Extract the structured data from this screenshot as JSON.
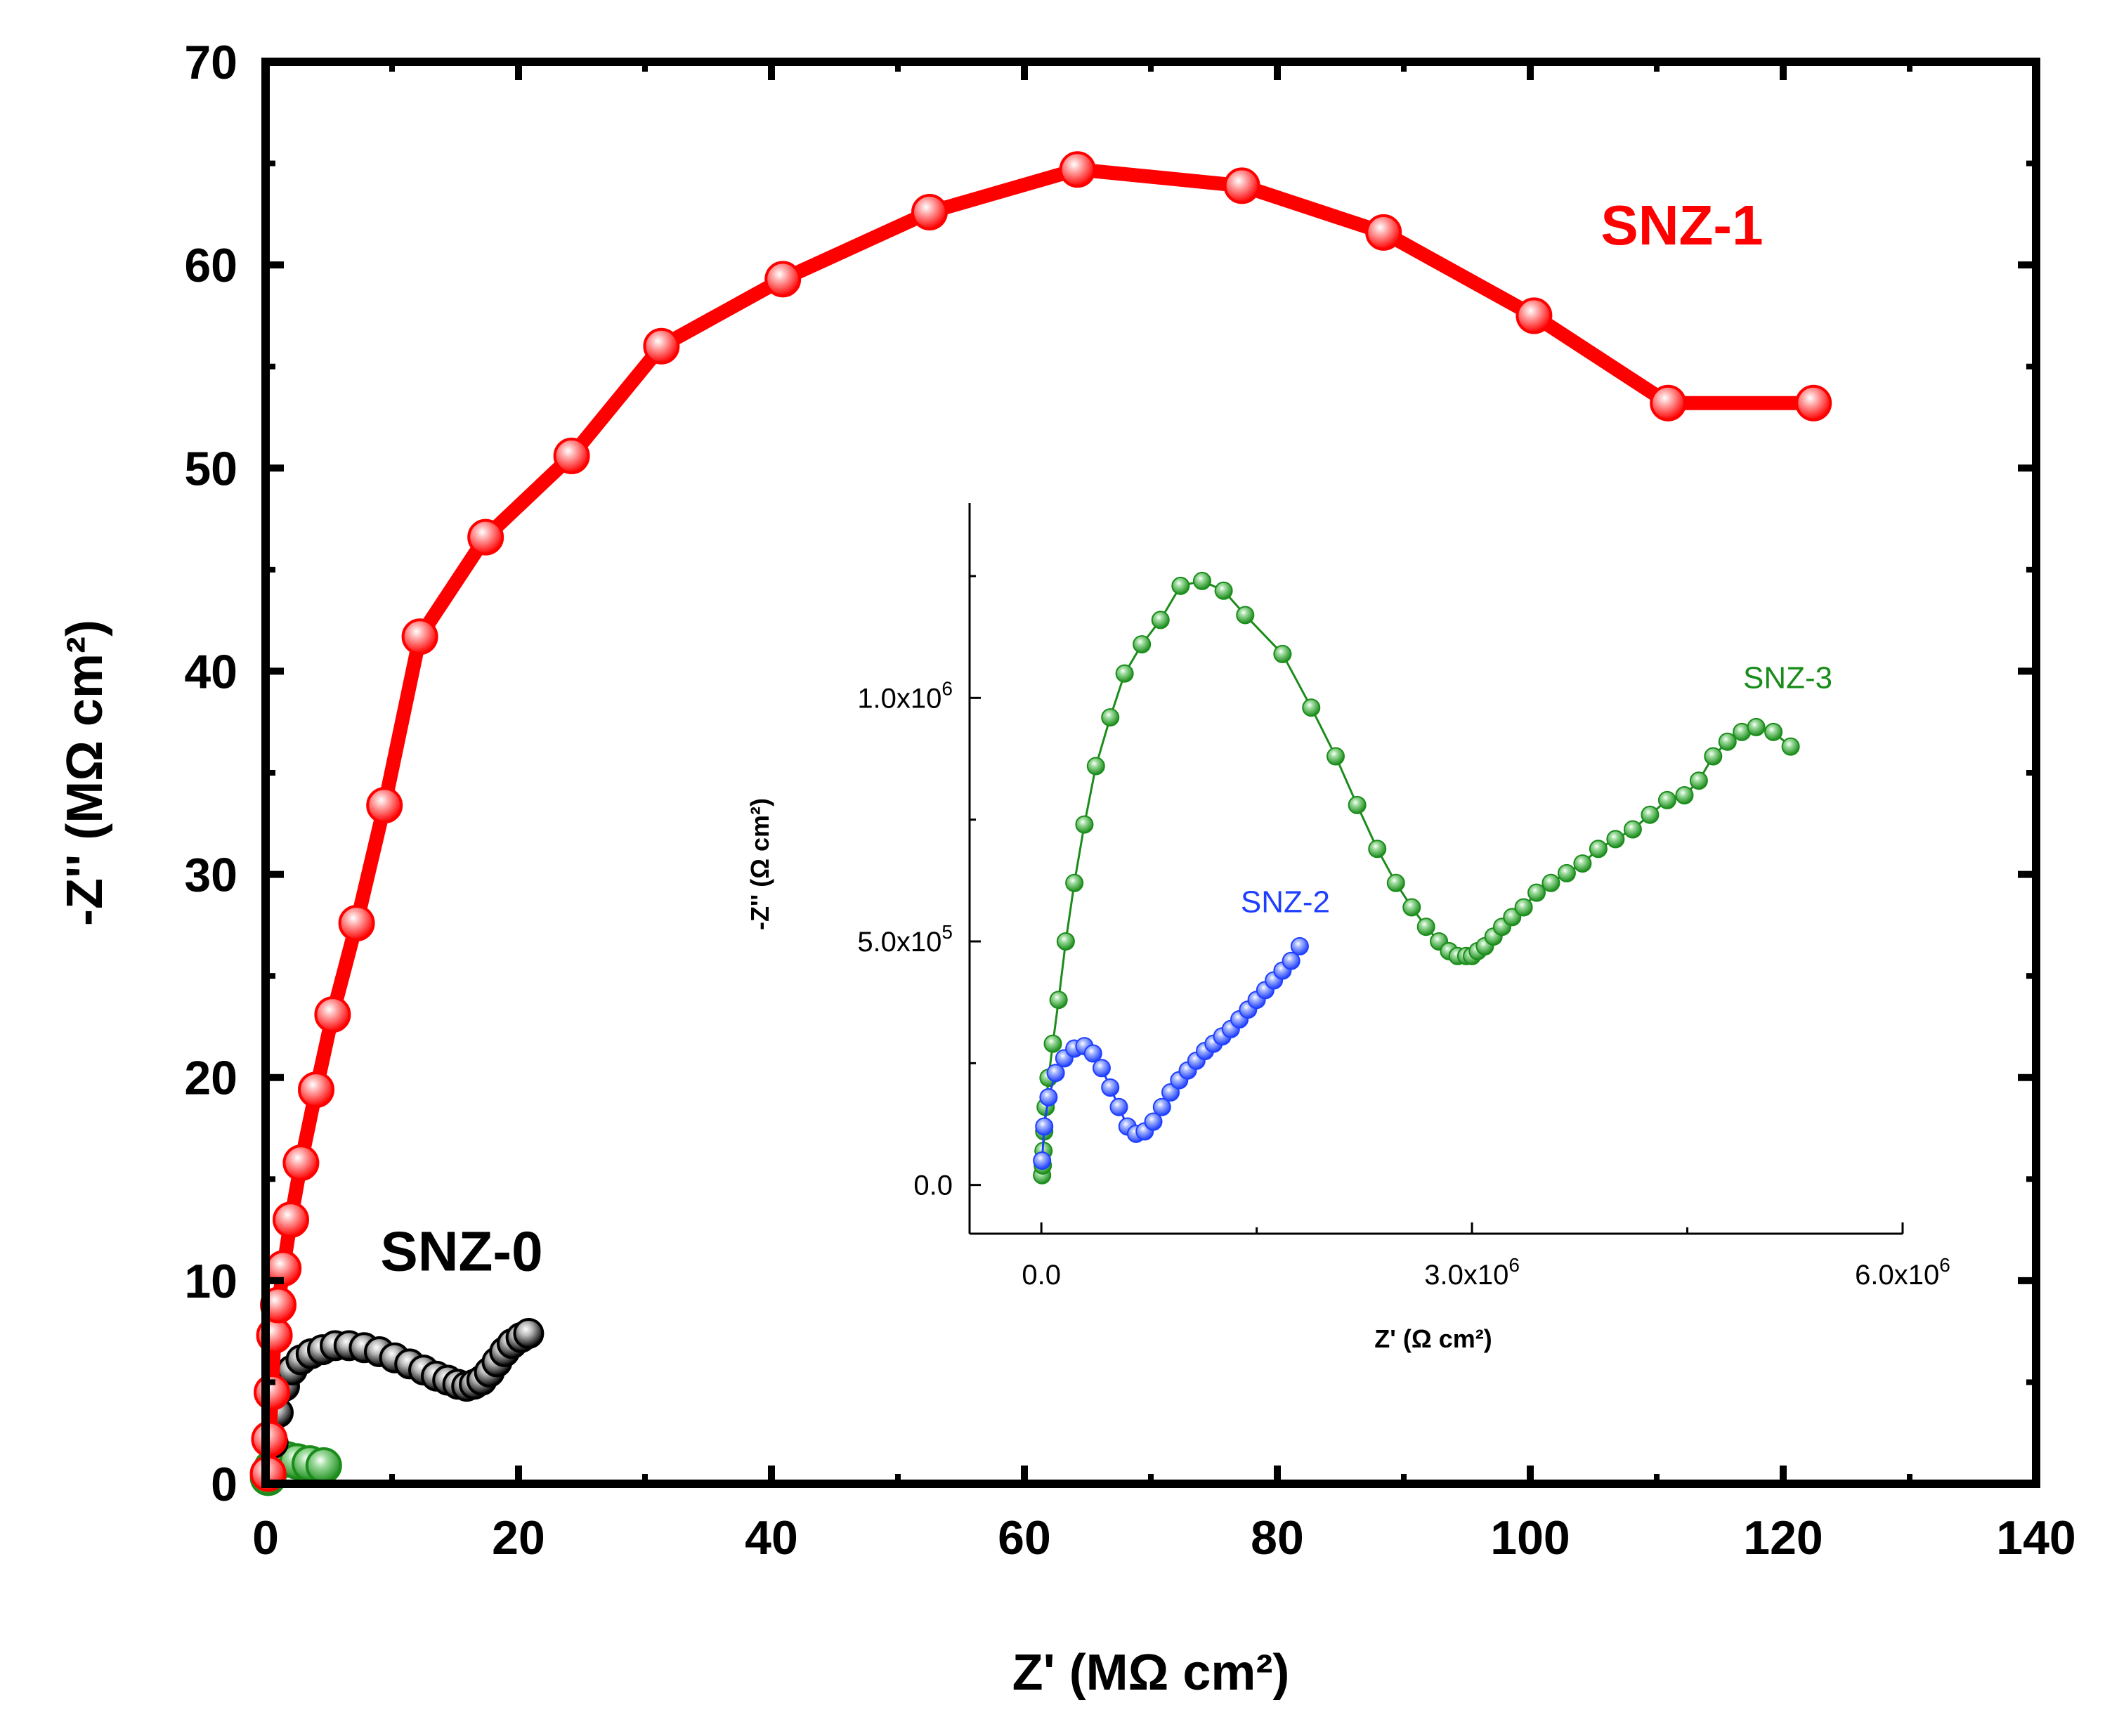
{
  "chart_data": [
    {
      "type": "scatter",
      "title": "",
      "xlabel": "Z' (MΩ cm²)",
      "ylabel": "-Z'' (MΩ cm²)",
      "xlim": [
        0,
        140
      ],
      "ylim": [
        0,
        70
      ],
      "xticks": [
        "0",
        "20",
        "40",
        "60",
        "80",
        "100",
        "120",
        "140"
      ],
      "yticks": [
        "0",
        "10",
        "20",
        "30",
        "40",
        "50",
        "60",
        "70"
      ],
      "grid": false,
      "series": [
        {
          "name": "SNZ-1",
          "label": "SNZ-1",
          "color": "#ff0000",
          "x": [
            0.2,
            0.3,
            0.5,
            0.7,
            1.0,
            1.4,
            2.0,
            2.8,
            4.0,
            5.3,
            7.2,
            9.4,
            12.2,
            17.4,
            24.2,
            31.3,
            40.9,
            52.5,
            64.2,
            77.2,
            88.4,
            100.3,
            110.9,
            122.4
          ],
          "y": [
            0.5,
            2.2,
            4.5,
            7.3,
            8.8,
            10.6,
            13.0,
            15.8,
            19.4,
            23.1,
            27.6,
            33.4,
            41.7,
            46.6,
            50.6,
            56.0,
            59.3,
            62.6,
            64.7,
            63.9,
            61.6,
            57.5,
            53.2,
            53.2
          ]
        },
        {
          "name": "SNZ-0",
          "label": "SNZ-0",
          "color": "#000000",
          "x": [
            0.3,
            0.6,
            1.0,
            1.5,
            2.1,
            2.8,
            3.6,
            4.5,
            5.5,
            6.6,
            7.8,
            9.0,
            10.2,
            11.4,
            12.5,
            13.5,
            14.4,
            15.2,
            15.9,
            16.5,
            17.1,
            17.7,
            18.3,
            18.9,
            19.5,
            20.2,
            20.8
          ],
          "y": [
            0.5,
            2.0,
            3.5,
            4.8,
            5.6,
            6.1,
            6.4,
            6.6,
            6.8,
            6.8,
            6.7,
            6.5,
            6.2,
            5.9,
            5.6,
            5.3,
            5.1,
            4.9,
            4.8,
            4.9,
            5.1,
            5.5,
            6.0,
            6.5,
            6.9,
            7.2,
            7.4
          ]
        },
        {
          "name": "SNZ-3 (main)",
          "color": "#1a8c1a",
          "x": [
            0.2,
            0.5,
            1.0,
            1.7,
            2.5,
            3.5,
            4.6
          ],
          "y": [
            0.3,
            0.8,
            1.1,
            1.2,
            1.1,
            1.0,
            0.9
          ]
        }
      ],
      "annotations": [
        {
          "text": "SNZ-1",
          "x": 112,
          "y": 61,
          "color": "#ff0000"
        },
        {
          "text": "SNZ-0",
          "x": 15.5,
          "y": 10.5,
          "color": "#000000"
        }
      ]
    },
    {
      "type": "scatter",
      "title": "",
      "xlabel": "Z' (Ω cm²)",
      "ylabel": "-Z'' (Ω cm²)",
      "xlim": [
        -500000,
        6000000
      ],
      "ylim": [
        -100000,
        1400000
      ],
      "xticks": [
        0,
        3000000,
        6000000
      ],
      "xtick_labels": [
        "0.0",
        "3.0x10",
        "6.0x10"
      ],
      "xtick_exponents": [
        "",
        "6",
        "6"
      ],
      "yticks": [
        0,
        500000,
        1000000
      ],
      "ytick_labels": [
        "0.0",
        "5.0x10",
        "1.0x10"
      ],
      "ytick_exponents": [
        "",
        "5",
        "6"
      ],
      "grid": false,
      "series": [
        {
          "name": "SNZ-3",
          "label": "SNZ-3",
          "color": "#1a8c1a",
          "x": [
            5000,
            10000,
            15000,
            20000,
            30000,
            50000,
            80000,
            120000,
            170000,
            230000,
            300000,
            380000,
            480000,
            580000,
            700000,
            830000,
            970000,
            1120000,
            1270000,
            1420000,
            1680000,
            1880000,
            2050000,
            2200000,
            2340000,
            2470000,
            2580000,
            2680000,
            2770000,
            2840000,
            2900000,
            2960000,
            3000000,
            3040000,
            3090000,
            3150000,
            3210000,
            3280000,
            3360000,
            3450000,
            3550000,
            3660000,
            3770000,
            3880000,
            4000000,
            4120000,
            4240000,
            4360000,
            4480000,
            4580000,
            4680000,
            4780000,
            4880000,
            4980000,
            5100000,
            5220000
          ],
          "y": [
            20000,
            40000,
            70000,
            110000,
            160000,
            220000,
            290000,
            380000,
            500000,
            620000,
            740000,
            860000,
            960000,
            1050000,
            1110000,
            1160000,
            1230000,
            1240000,
            1220000,
            1170000,
            1090000,
            980000,
            880000,
            780000,
            690000,
            620000,
            570000,
            530000,
            500000,
            480000,
            470000,
            470000,
            470000,
            480000,
            490000,
            510000,
            530000,
            550000,
            570000,
            600000,
            620000,
            640000,
            660000,
            690000,
            710000,
            730000,
            760000,
            790000,
            800000,
            830000,
            880000,
            910000,
            930000,
            940000,
            930000,
            900000
          ]
        },
        {
          "name": "SNZ-2",
          "label": "SNZ-2",
          "color": "#1f3fff",
          "x": [
            5000,
            20000,
            50000,
            100000,
            160000,
            230000,
            300000,
            360000,
            420000,
            480000,
            540000,
            600000,
            660000,
            720000,
            780000,
            840000,
            900000,
            960000,
            1020000,
            1080000,
            1140000,
            1200000,
            1260000,
            1320000,
            1380000,
            1440000,
            1500000,
            1560000,
            1620000,
            1680000,
            1740000,
            1800000
          ],
          "y": [
            50000,
            120000,
            180000,
            230000,
            260000,
            280000,
            285000,
            270000,
            240000,
            200000,
            160000,
            120000,
            105000,
            110000,
            130000,
            160000,
            190000,
            215000,
            235000,
            255000,
            275000,
            290000,
            305000,
            320000,
            340000,
            360000,
            380000,
            400000,
            420000,
            440000,
            460000,
            490000
          ]
        }
      ],
      "annotations": [
        {
          "text": "SNZ-2",
          "x": 1700000,
          "y": 560000,
          "color": "#1f3fff"
        },
        {
          "text": "SNZ-3",
          "x": 5200000,
          "y": 1020000,
          "color": "#1a8c1a"
        }
      ]
    }
  ]
}
